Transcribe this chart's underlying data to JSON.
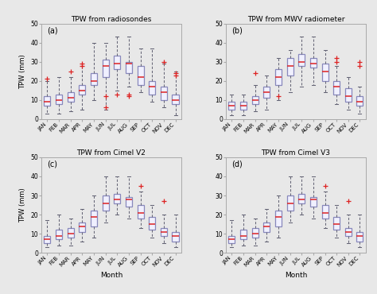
{
  "titles": [
    "TPW from radiosondes",
    "TPW from MWV radiometer",
    "TPW from Cimel V2",
    "TPW from Cimel V3"
  ],
  "panel_labels": [
    "(a)",
    "(b)",
    "(c)",
    "(d)"
  ],
  "months": [
    "JAN",
    "FEB",
    "MAR",
    "APR",
    "MAY",
    "JUN",
    "JUL",
    "AUG",
    "SEP",
    "OCT",
    "NOV",
    "DEC"
  ],
  "ylabel": "TPW (mm)",
  "xlabel": "Month",
  "ylim": [
    0,
    50
  ],
  "fig_bg": "#e8e8e8",
  "ax_bg": "#e8e8e8",
  "box_edge_color": "#8888bb",
  "box_face_color": "#f0f0ff",
  "median_color": "#dd2222",
  "whisker_color": "#666677",
  "cap_color": "#666677",
  "outlier_color": "#dd2222",
  "datasets": {
    "radiosondes": {
      "q1": [
        7,
        8,
        9,
        13,
        18,
        22,
        26,
        24,
        18,
        13,
        10,
        8
      ],
      "median": [
        9,
        10,
        11,
        15,
        20,
        28,
        29,
        29,
        22,
        17,
        14,
        10
      ],
      "q3": [
        12,
        13,
        14,
        18,
        24,
        31,
        33,
        30,
        28,
        20,
        17,
        13
      ],
      "whislo": [
        3,
        3,
        4,
        5,
        10,
        5,
        15,
        17,
        14,
        9,
        6,
        2
      ],
      "whishi": [
        20,
        22,
        22,
        28,
        40,
        40,
        43,
        43,
        37,
        37,
        29,
        25
      ],
      "fliers": [
        [
          21
        ],
        [],
        [
          25
        ],
        [
          28,
          29
        ],
        [],
        [
          6,
          12
        ],
        [
          13
        ],
        [
          12,
          13
        ],
        [],
        [],
        [
          30
        ],
        [
          23,
          24
        ]
      ]
    },
    "mwv": {
      "q1": [
        5,
        5,
        8,
        11,
        18,
        23,
        28,
        27,
        20,
        13,
        9,
        7
      ],
      "median": [
        7,
        7,
        10,
        14,
        22,
        28,
        30,
        29,
        25,
        17,
        12,
        9
      ],
      "q3": [
        9,
        9,
        12,
        17,
        26,
        32,
        34,
        32,
        29,
        20,
        16,
        12
      ],
      "whislo": [
        2,
        2,
        4,
        5,
        10,
        14,
        17,
        18,
        14,
        8,
        5,
        3
      ],
      "whishi": [
        13,
        13,
        18,
        23,
        32,
        36,
        43,
        43,
        36,
        28,
        22,
        17
      ],
      "fliers": [
        [],
        [],
        [
          24
        ],
        [],
        [
          12
        ],
        [],
        [],
        [],
        [],
        [
          30,
          32
        ],
        [],
        [
          28,
          30
        ]
      ]
    },
    "cimel_v2": {
      "q1": [
        5,
        7,
        8,
        11,
        14,
        22,
        26,
        24,
        18,
        12,
        9,
        6
      ],
      "median": [
        7,
        9,
        10,
        14,
        19,
        26,
        28,
        28,
        21,
        15,
        11,
        9
      ],
      "q3": [
        9,
        12,
        13,
        16,
        22,
        30,
        31,
        29,
        25,
        19,
        13,
        11
      ],
      "whislo": [
        3,
        4,
        4,
        6,
        8,
        16,
        20,
        18,
        13,
        8,
        5,
        3
      ],
      "whishi": [
        17,
        20,
        18,
        23,
        30,
        40,
        40,
        40,
        32,
        25,
        20,
        20
      ],
      "fliers": [
        [],
        [],
        [],
        [],
        [],
        [],
        [],
        [],
        [
          35
        ],
        [],
        [
          27
        ],
        []
      ]
    },
    "cimel_v3": {
      "q1": [
        5,
        7,
        8,
        11,
        14,
        22,
        26,
        24,
        18,
        12,
        9,
        6
      ],
      "median": [
        7,
        9,
        10,
        14,
        19,
        26,
        28,
        28,
        21,
        15,
        11,
        9
      ],
      "q3": [
        9,
        12,
        13,
        16,
        22,
        30,
        31,
        29,
        25,
        19,
        13,
        11
      ],
      "whislo": [
        3,
        4,
        4,
        6,
        8,
        16,
        20,
        18,
        13,
        8,
        5,
        3
      ],
      "whishi": [
        17,
        20,
        18,
        23,
        30,
        40,
        40,
        40,
        32,
        25,
        20,
        20
      ],
      "fliers": [
        [],
        [],
        [],
        [],
        [],
        [],
        [],
        [],
        [
          35
        ],
        [],
        [
          27
        ],
        []
      ]
    }
  }
}
